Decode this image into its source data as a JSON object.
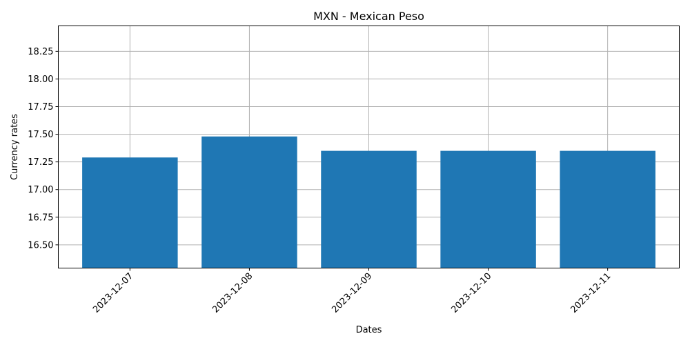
{
  "chart_data": {
    "type": "bar",
    "title": "MXN - Mexican Peso",
    "xlabel": "Dates",
    "ylabel": "Currency rates",
    "categories": [
      "2023-12-07",
      "2023-12-08",
      "2023-12-09",
      "2023-12-10",
      "2023-12-11"
    ],
    "values": [
      17.29,
      17.48,
      17.35,
      17.35,
      17.35
    ],
    "ylim": [
      16.29,
      18.48
    ],
    "yticks": [
      16.5,
      16.75,
      17.0,
      17.25,
      17.5,
      17.75,
      18.0,
      18.25
    ],
    "ytick_labels": [
      "16.50",
      "16.75",
      "17.00",
      "17.25",
      "17.50",
      "17.75",
      "18.00",
      "18.25"
    ],
    "grid": true,
    "bar_color": "#1f77b4"
  }
}
